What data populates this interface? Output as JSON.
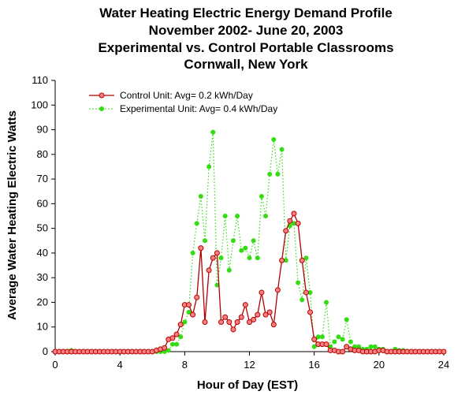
{
  "chart_data": {
    "type": "line",
    "title": [
      "Water Heating Electric Energy Demand Profile",
      "November 2002- June 20, 2003",
      "Experimental vs. Control Portable Classrooms",
      "Cornwall, New York"
    ],
    "xlabel": "Hour of Day (EST)",
    "ylabel": "Average Water Heating Electric Watts",
    "xlim": [
      0,
      24
    ],
    "ylim": [
      0,
      110
    ],
    "xticks": [
      "0",
      "4",
      "8",
      "12",
      "16",
      "20",
      "24"
    ],
    "yticks": [
      "0",
      "10",
      "20",
      "30",
      "40",
      "50",
      "60",
      "70",
      "80",
      "90",
      "100",
      "110"
    ],
    "grid": false,
    "legend_position": "top-left",
    "x": [
      0,
      0.25,
      0.5,
      0.75,
      1,
      1.25,
      1.5,
      1.75,
      2,
      2.25,
      2.5,
      2.75,
      3,
      3.25,
      3.5,
      3.75,
      4,
      4.25,
      4.5,
      4.75,
      5,
      5.25,
      5.5,
      5.75,
      6,
      6.25,
      6.5,
      6.75,
      7,
      7.25,
      7.5,
      7.75,
      8,
      8.25,
      8.5,
      8.75,
      9,
      9.25,
      9.5,
      9.75,
      10,
      10.25,
      10.5,
      10.75,
      11,
      11.25,
      11.5,
      11.75,
      12,
      12.25,
      12.5,
      12.75,
      13,
      13.25,
      13.5,
      13.75,
      14,
      14.25,
      14.5,
      14.75,
      15,
      15.25,
      15.5,
      15.75,
      16,
      16.25,
      16.5,
      16.75,
      17,
      17.25,
      17.5,
      17.75,
      18,
      18.25,
      18.5,
      18.75,
      19,
      19.25,
      19.5,
      19.75,
      20,
      20.25,
      20.5,
      20.75,
      21,
      21.25,
      21.5,
      21.75,
      22,
      22.25,
      22.5,
      22.75,
      23,
      23.25,
      23.5,
      23.75,
      24
    ],
    "series": [
      {
        "name": "Control Unit: Avg= 0.2 kWh/Day",
        "color": "#b00000",
        "marker_fill": "#ff8080",
        "line_style": "solid",
        "values": [
          0,
          0,
          0,
          0,
          0,
          0,
          0,
          0,
          0,
          0,
          0,
          0,
          0,
          0,
          0,
          0,
          0,
          0,
          0,
          0,
          0,
          0,
          0,
          0,
          0,
          0.5,
          1,
          1.5,
          5,
          5.5,
          7,
          11,
          19,
          19,
          15,
          22,
          42,
          12,
          33,
          38,
          40,
          12,
          14,
          12,
          9,
          12,
          14,
          19,
          12,
          13,
          15,
          24,
          15,
          16,
          11,
          25,
          37,
          49,
          53,
          56,
          52,
          37,
          24,
          16,
          5,
          3,
          3,
          3,
          0.5,
          0.5,
          0,
          0,
          2,
          1,
          0.5,
          0.5,
          0,
          0,
          0,
          0,
          0.5,
          0.5,
          0,
          0,
          0,
          0,
          0,
          0,
          0,
          0,
          0,
          0,
          0,
          0,
          0,
          0,
          0
        ]
      },
      {
        "name": "Experimental Unit: Avg= 0.4 kWh/Day",
        "color": "#33dd11",
        "marker_fill": "#33dd11",
        "line_style": "dotted",
        "values": [
          0,
          0,
          0,
          0,
          0.5,
          0,
          0,
          0,
          0,
          0,
          0,
          0,
          0,
          0,
          0,
          0,
          0,
          0,
          0,
          0,
          0,
          0,
          0,
          0,
          0,
          0,
          0,
          0,
          0.5,
          3,
          3,
          6,
          12,
          16,
          40,
          52,
          63,
          45,
          75,
          89,
          27,
          38,
          55,
          33,
          45,
          55,
          41,
          42,
          38,
          45,
          38,
          63,
          55,
          72,
          86,
          72,
          82,
          37,
          51,
          52,
          28,
          21,
          38,
          24,
          2,
          6,
          6,
          20,
          2,
          4,
          6,
          5,
          13,
          4,
          2,
          2,
          1,
          1,
          2,
          2,
          1,
          1,
          0,
          0,
          1,
          0.5,
          0.5,
          0,
          0,
          0,
          0,
          0,
          0,
          0,
          0,
          0,
          0
        ]
      }
    ]
  }
}
